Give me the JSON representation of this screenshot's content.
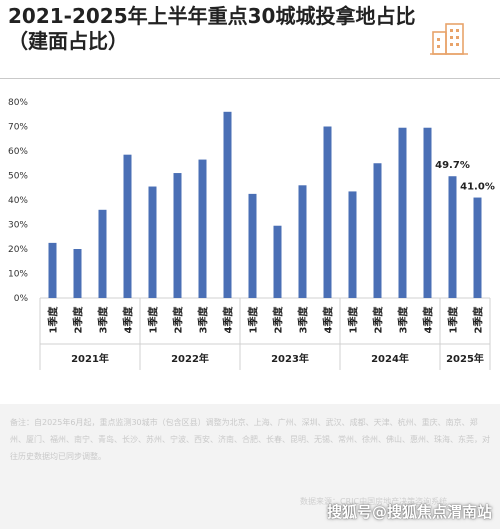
{
  "title": "2021-2025年上半年重点30城城投拿地占比（建面占比）",
  "icon": "building-icon",
  "colors": {
    "bar": "#4a6fb5",
    "accent": "#e8a36a"
  },
  "chart_data": {
    "type": "bar",
    "title": "2021-2025年上半年重点30城城投拿地占比（建面占比）",
    "xlabel": "",
    "ylabel": "",
    "ylim": [
      0,
      80
    ],
    "yticks": [
      "0%",
      "10%",
      "20%",
      "30%",
      "40%",
      "50%",
      "60%",
      "70%",
      "80%"
    ],
    "grid": false,
    "categories": [
      "1季度",
      "2季度",
      "3季度",
      "4季度",
      "1季度",
      "2季度",
      "3季度",
      "4季度",
      "1季度",
      "2季度",
      "3季度",
      "4季度",
      "1季度",
      "2季度",
      "3季度",
      "4季度",
      "1季度",
      "2季度"
    ],
    "values": [
      22.5,
      20,
      36,
      58.5,
      45.5,
      51,
      56.5,
      76,
      42.5,
      29.5,
      46,
      70,
      43.5,
      55,
      69.5,
      69.5,
      49.7,
      41.0
    ],
    "data_labels": [
      {
        "index": 16,
        "text": "49.7%"
      },
      {
        "index": 17,
        "text": "41.0%"
      }
    ],
    "groups": [
      {
        "label": "2021年",
        "count": 4
      },
      {
        "label": "2022年",
        "count": 4
      },
      {
        "label": "2023年",
        "count": 4
      },
      {
        "label": "2024年",
        "count": 4
      },
      {
        "label": "2025年",
        "count": 2
      }
    ]
  },
  "footer": {
    "note": "备注：自2025年6月起，重点监测30城市（包含区县）调整为北京、上海、广州、深圳、武汉、成都、天津、杭州、重庆、南京、郑州、厦门、福州、南宁、青岛、长沙、苏州、宁波、西安、济南、合肥、长春、昆明、无锡、常州、徐州、佛山、惠州、珠海、东莞，对往历史数据均已同步调整。",
    "source": "数据来源：CRIC中国房地产决策咨询系统",
    "watermark": "搜狐号@搜狐焦点渭南站"
  }
}
